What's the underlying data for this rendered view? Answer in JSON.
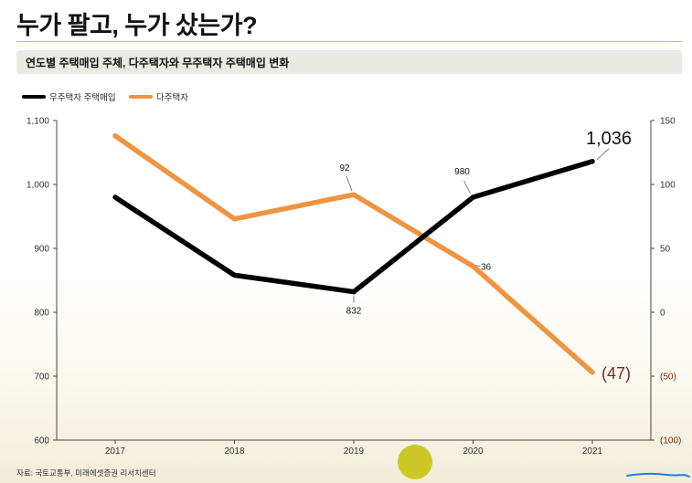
{
  "header": {
    "title": "누가 팔고, 누가 샀는가?",
    "subtitle": "연도별 주택매입 주체, 다주택자와 무주택자 주택매입 변화"
  },
  "legend": {
    "items": [
      {
        "label": "무주택자 주택매입",
        "color": "#000000"
      },
      {
        "label": "다주택자",
        "color": "#ef9440"
      }
    ]
  },
  "source": "자료: 국토교통부, 미래에셋증권 리서치센터",
  "colors": {
    "primary_line": "#000000",
    "secondary_line": "#ef9440",
    "negative_label": "#7a2a1c",
    "highlight": "#cdc828",
    "scribble": "#1e7fe0"
  },
  "chart_data": {
    "type": "line",
    "x": [
      "2017",
      "2018",
      "2019",
      "2020",
      "2021"
    ],
    "series": [
      {
        "name": "무주택자 주택매입",
        "axis": "left",
        "values": [
          980,
          858,
          832,
          980,
          1036
        ],
        "data_labels": [
          "",
          "",
          "832",
          "980",
          "1,036"
        ]
      },
      {
        "name": "다주택자",
        "axis": "right",
        "values": [
          138,
          73,
          92,
          36,
          -47
        ],
        "data_labels": [
          "",
          "",
          "92",
          "36",
          "(47)"
        ]
      }
    ],
    "left_axis": {
      "range": [
        600,
        1100
      ],
      "ticks": [
        600,
        700,
        800,
        900,
        1000,
        1100
      ],
      "tick_labels": [
        "600",
        "700",
        "800",
        "900",
        "1,000",
        "1,100"
      ]
    },
    "right_axis": {
      "range": [
        -100,
        150
      ],
      "ticks": [
        -100,
        -50,
        0,
        50,
        100,
        150
      ],
      "tick_labels": [
        "(100)",
        "(50)",
        "0",
        "50",
        "100",
        "150"
      ]
    },
    "grid": false,
    "legend_position": "top-left"
  }
}
